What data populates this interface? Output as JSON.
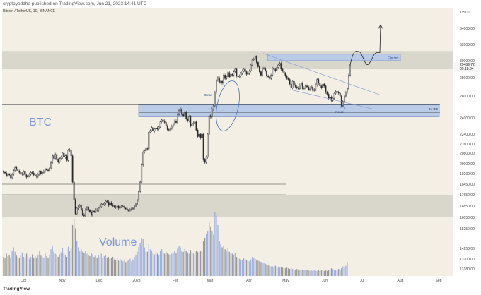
{
  "header": {
    "publish_line": "cryptoyoddha published on TradingView.com, Jun 21, 2023 14:41 UTC",
    "symbol_line": "Bitcoin / TetherUS, 1D, BINANCE"
  },
  "brand": {
    "label": "TradingView"
  },
  "colors": {
    "background": "#f3efe5",
    "candle": "#2b2b2b",
    "zone": "#d6d3c9",
    "blue_zone": "#b9cbe6",
    "blue_zone_stroke": "#4a6fb3",
    "volume_gray": "#8a8a8a",
    "volume_blue": "#8fa6e0",
    "label_blue": "#7a96d8",
    "price_badge": "#f2f2f2",
    "trend_line": "#8aa0d0"
  },
  "chart_data": {
    "type": "candlestick",
    "currency_label": "USDT",
    "ticker_label": "BTC",
    "volume_label": "Volume",
    "last_price": "29489.72",
    "countdown": "09:18:34",
    "y_ticks": [
      "34000.00",
      "32000.00",
      "30000.00",
      "28000.00",
      "26000.00",
      "24000.00",
      "22400.00",
      "21600.00",
      "20800.00",
      "20000.00",
      "19200.00",
      "18450.00",
      "17650.00",
      "16850.00",
      "16050.00",
      "15250.00",
      "14250.00",
      "13700.00",
      "13180.00"
    ],
    "x_ticks": [
      "Oct",
      "Nov",
      "Dec",
      "2023",
      "Feb",
      "Mar",
      "Apr",
      "May",
      "Jun",
      "Jul",
      "Aug",
      "Sep"
    ],
    "annotations": {
      "flip_label": "Flip this",
      "break_label": "Break",
      "retest_label": "Retest",
      "level_label": "21 OB"
    },
    "closes": [
      19300,
      19250,
      19050,
      19150,
      19100,
      18900,
      19150,
      19450,
      19700,
      19550,
      19400,
      19300,
      19150,
      19200,
      19350,
      19100,
      18950,
      19050,
      19150,
      19300,
      19250,
      19100,
      19050,
      19000,
      19150,
      19350,
      19200,
      19300,
      19400,
      19550,
      19500,
      19450,
      19650,
      20100,
      20600,
      20400,
      20700,
      20300,
      20150,
      20400,
      20500,
      20800,
      20500,
      20600,
      20250,
      21050,
      21100,
      20600,
      18600,
      17300,
      16300,
      16700,
      16800,
      16900,
      16600,
      16250,
      16150,
      16600,
      16750,
      16550,
      16450,
      16200,
      16500,
      16450,
      16600,
      16550,
      16700,
      16800,
      17000,
      16950,
      17050,
      17200,
      17150,
      16900,
      17100,
      16950,
      16850,
      16800,
      16750,
      16850,
      16700,
      16800,
      16850,
      16850,
      16700,
      16650,
      16550,
      16550,
      16600,
      16650,
      16700,
      16850,
      17000,
      17250,
      17900,
      18600,
      19900,
      20900,
      21000,
      21200,
      21150,
      22600,
      22750,
      23050,
      22700,
      22900,
      23000,
      22900,
      23100,
      23600,
      23800,
      23700,
      23550,
      23200,
      22850,
      22800,
      22950,
      23200,
      23400,
      23700,
      23550,
      24300,
      24700,
      24800,
      24300,
      24200,
      24500,
      23900,
      23700,
      24100,
      23200,
      23400,
      23500,
      23600,
      22800,
      22200,
      22400,
      22100,
      22400,
      20300,
      20100,
      20500,
      22400,
      24200,
      24100,
      24800,
      25100,
      26400,
      27700,
      28000,
      27500,
      27600,
      27400,
      28300,
      27900,
      28100,
      28600,
      28100,
      28400,
      28300,
      28700,
      29000,
      28200,
      28100,
      28200,
      28500,
      28800,
      29000,
      28700,
      28400,
      28500,
      28800,
      29500,
      30100,
      30200,
      30500,
      29800,
      29300,
      28700,
      28300,
      29100,
      29100,
      28800,
      28200,
      28100,
      27900,
      28300,
      29100,
      29000,
      28800,
      29200,
      29500,
      29700,
      29000,
      28800,
      28500,
      28200,
      27900,
      27800,
      27300,
      26900,
      27600,
      27200,
      27000,
      26900,
      26800,
      27200,
      27400,
      26800,
      26900,
      27100,
      27000,
      26700,
      26900,
      27000,
      26600,
      26700,
      27200,
      27800,
      27400,
      27100,
      26900,
      27300,
      27100,
      26400,
      26200,
      25800,
      25900,
      25600,
      25800,
      26300,
      26500,
      26400,
      26300,
      26000,
      25100,
      25500,
      26000,
      26400,
      26800,
      28300,
      29489
    ],
    "volumes": [
      0.3,
      0.28,
      0.35,
      0.31,
      0.33,
      0.29,
      0.4,
      0.45,
      0.38,
      0.32,
      0.3,
      0.28,
      0.33,
      0.37,
      0.3,
      0.29,
      0.35,
      0.31,
      0.27,
      0.3,
      0.34,
      0.29,
      0.31,
      0.28,
      0.33,
      0.4,
      0.32,
      0.3,
      0.28,
      0.35,
      0.31,
      0.29,
      0.33,
      0.42,
      0.48,
      0.38,
      0.35,
      0.33,
      0.3,
      0.34,
      0.37,
      0.44,
      0.36,
      0.33,
      0.3,
      0.46,
      0.4,
      0.44,
      0.8,
      0.9,
      0.75,
      0.55,
      0.45,
      0.4,
      0.42,
      0.38,
      0.36,
      0.4,
      0.35,
      0.33,
      0.31,
      0.36,
      0.34,
      0.3,
      0.32,
      0.29,
      0.33,
      0.3,
      0.35,
      0.28,
      0.31,
      0.33,
      0.29,
      0.3,
      0.27,
      0.28,
      0.3,
      0.26,
      0.25,
      0.28,
      0.24,
      0.27,
      0.25,
      0.23,
      0.26,
      0.22,
      0.24,
      0.25,
      0.27,
      0.23,
      0.26,
      0.3,
      0.33,
      0.38,
      0.46,
      0.52,
      0.6,
      0.58,
      0.45,
      0.4,
      0.38,
      0.5,
      0.42,
      0.4,
      0.36,
      0.34,
      0.38,
      0.35,
      0.33,
      0.4,
      0.42,
      0.37,
      0.35,
      0.38,
      0.36,
      0.34,
      0.33,
      0.35,
      0.37,
      0.4,
      0.36,
      0.43,
      0.47,
      0.45,
      0.4,
      0.38,
      0.42,
      0.4,
      0.37,
      0.35,
      0.41,
      0.38,
      0.36,
      0.33,
      0.4,
      0.38,
      0.36,
      0.4,
      0.38,
      0.55,
      0.6,
      0.66,
      0.7,
      0.85,
      0.78,
      0.7,
      0.65,
      1.0,
      0.95,
      0.8,
      0.55,
      0.5,
      0.45,
      0.48,
      0.42,
      0.4,
      0.44,
      0.38,
      0.36,
      0.35,
      0.33,
      0.36,
      0.3,
      0.28,
      0.27,
      0.26,
      0.25,
      0.28,
      0.26,
      0.25,
      0.24,
      0.23,
      0.26,
      0.3,
      0.28,
      0.27,
      0.25,
      0.24,
      0.23,
      0.22,
      0.21,
      0.2,
      0.19,
      0.18,
      0.17,
      0.16,
      0.15,
      0.15,
      0.14,
      0.16,
      0.15,
      0.14,
      0.13,
      0.14,
      0.13,
      0.12,
      0.12,
      0.13,
      0.12,
      0.11,
      0.12,
      0.11,
      0.1,
      0.1,
      0.11,
      0.1,
      0.1,
      0.09,
      0.1,
      0.09,
      0.09,
      0.1,
      0.09,
      0.08,
      0.09,
      0.08,
      0.09,
      0.08,
      0.08,
      0.09,
      0.08,
      0.1,
      0.09,
      0.08,
      0.09,
      0.08,
      0.09,
      0.1,
      0.12,
      0.11,
      0.1,
      0.09,
      0.1,
      0.11,
      0.1,
      0.12,
      0.15,
      0.14,
      0.16,
      0.22
    ]
  }
}
